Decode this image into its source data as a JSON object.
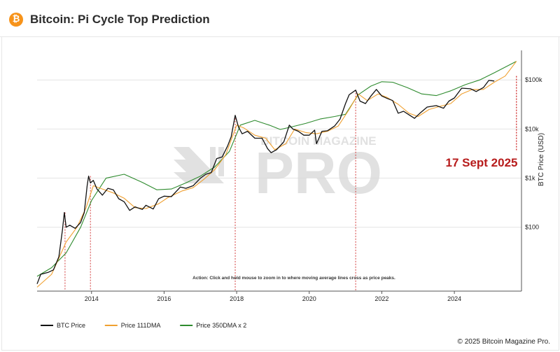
{
  "header": {
    "title": "Bitcoin: Pi Cycle Top Prediction",
    "logo_glyph": "₿",
    "logo_color": "#f7931a"
  },
  "footer": {
    "copyright": "© 2025 Bitcoin Magazine Pro."
  },
  "chart_data": {
    "type": "line",
    "title": "",
    "xlabel": "",
    "ylabel": "BTC Price (USD)",
    "y_scale": "log",
    "xlim": [
      2012.5,
      2025.85
    ],
    "ylim": [
      5,
      400000
    ],
    "x_ticks": [
      {
        "value": 2014,
        "label": "2014"
      },
      {
        "value": 2016,
        "label": "2016"
      },
      {
        "value": 2018,
        "label": "2018"
      },
      {
        "value": 2020,
        "label": "2020"
      },
      {
        "value": 2022,
        "label": "2022"
      },
      {
        "value": 2024,
        "label": "2024"
      }
    ],
    "y_ticks": [
      {
        "value": 100,
        "label": "$100"
      },
      {
        "value": 1000,
        "label": "$1k"
      },
      {
        "value": 10000,
        "label": "$10k"
      },
      {
        "value": 100000,
        "label": "$100k"
      }
    ],
    "grid": "horizontal",
    "legend_position": "bottom-left",
    "series": [
      {
        "name": "BTC Price",
        "color": "#111111",
        "points": [
          [
            2012.5,
            7
          ],
          [
            2012.6,
            11
          ],
          [
            2012.8,
            12
          ],
          [
            2012.95,
            13.5
          ],
          [
            2013.1,
            25
          ],
          [
            2013.2,
            90
          ],
          [
            2013.25,
            200
          ],
          [
            2013.3,
            100
          ],
          [
            2013.4,
            110
          ],
          [
            2013.55,
            95
          ],
          [
            2013.7,
            125
          ],
          [
            2013.8,
            200
          ],
          [
            2013.88,
            700
          ],
          [
            2013.92,
            1100
          ],
          [
            2013.97,
            800
          ],
          [
            2014.05,
            900
          ],
          [
            2014.15,
            600
          ],
          [
            2014.3,
            450
          ],
          [
            2014.45,
            620
          ],
          [
            2014.6,
            580
          ],
          [
            2014.75,
            380
          ],
          [
            2014.9,
            330
          ],
          [
            2015.05,
            220
          ],
          [
            2015.2,
            260
          ],
          [
            2015.4,
            230
          ],
          [
            2015.5,
            280
          ],
          [
            2015.7,
            235
          ],
          [
            2015.85,
            380
          ],
          [
            2016.0,
            430
          ],
          [
            2016.2,
            420
          ],
          [
            2016.45,
            660
          ],
          [
            2016.6,
            620
          ],
          [
            2016.8,
            700
          ],
          [
            2017.0,
            1000
          ],
          [
            2017.15,
            1200
          ],
          [
            2017.3,
            1300
          ],
          [
            2017.45,
            2500
          ],
          [
            2017.6,
            2700
          ],
          [
            2017.75,
            4500
          ],
          [
            2017.85,
            7000
          ],
          [
            2017.96,
            19000
          ],
          [
            2018.05,
            11000
          ],
          [
            2018.15,
            8000
          ],
          [
            2018.3,
            9000
          ],
          [
            2018.5,
            6500
          ],
          [
            2018.7,
            6500
          ],
          [
            2018.85,
            4000
          ],
          [
            2018.95,
            3300
          ],
          [
            2019.1,
            3800
          ],
          [
            2019.3,
            5500
          ],
          [
            2019.45,
            12000
          ],
          [
            2019.55,
            10000
          ],
          [
            2019.7,
            9000
          ],
          [
            2019.85,
            7500
          ],
          [
            2020.0,
            7500
          ],
          [
            2020.15,
            9500
          ],
          [
            2020.2,
            5000
          ],
          [
            2020.35,
            9000
          ],
          [
            2020.5,
            9200
          ],
          [
            2020.7,
            11500
          ],
          [
            2020.85,
            16000
          ],
          [
            2021.0,
            33000
          ],
          [
            2021.1,
            50000
          ],
          [
            2021.28,
            62000
          ],
          [
            2021.4,
            37000
          ],
          [
            2021.55,
            33000
          ],
          [
            2021.7,
            47000
          ],
          [
            2021.85,
            64000
          ],
          [
            2022.0,
            47000
          ],
          [
            2022.15,
            42000
          ],
          [
            2022.3,
            38000
          ],
          [
            2022.45,
            21000
          ],
          [
            2022.6,
            23000
          ],
          [
            2022.75,
            19500
          ],
          [
            2022.9,
            16500
          ],
          [
            2023.05,
            21000
          ],
          [
            2023.25,
            28000
          ],
          [
            2023.5,
            30000
          ],
          [
            2023.7,
            26500
          ],
          [
            2023.85,
            37000
          ],
          [
            2024.0,
            43000
          ],
          [
            2024.2,
            68000
          ],
          [
            2024.45,
            66000
          ],
          [
            2024.6,
            58000
          ],
          [
            2024.8,
            70000
          ],
          [
            2024.95,
            98000
          ],
          [
            2025.1,
            95000
          ]
        ]
      },
      {
        "name": "Price 111DMA",
        "color": "#f0a030",
        "points": [
          [
            2012.5,
            6
          ],
          [
            2012.9,
            11
          ],
          [
            2013.3,
            50
          ],
          [
            2013.6,
            100
          ],
          [
            2013.85,
            250
          ],
          [
            2014.05,
            700
          ],
          [
            2014.3,
            600
          ],
          [
            2014.6,
            500
          ],
          [
            2014.9,
            390
          ],
          [
            2015.2,
            250
          ],
          [
            2015.5,
            240
          ],
          [
            2015.85,
            300
          ],
          [
            2016.1,
            400
          ],
          [
            2016.5,
            550
          ],
          [
            2016.8,
            640
          ],
          [
            2017.1,
            950
          ],
          [
            2017.4,
            1500
          ],
          [
            2017.7,
            3000
          ],
          [
            2018.0,
            12000
          ],
          [
            2018.2,
            10500
          ],
          [
            2018.5,
            7500
          ],
          [
            2018.8,
            6500
          ],
          [
            2019.05,
            3800
          ],
          [
            2019.35,
            5000
          ],
          [
            2019.6,
            10000
          ],
          [
            2019.9,
            8500
          ],
          [
            2020.2,
            8000
          ],
          [
            2020.5,
            9000
          ],
          [
            2020.8,
            11500
          ],
          [
            2021.1,
            25000
          ],
          [
            2021.35,
            52000
          ],
          [
            2021.6,
            38000
          ],
          [
            2021.9,
            52000
          ],
          [
            2022.15,
            44000
          ],
          [
            2022.45,
            32000
          ],
          [
            2022.75,
            21000
          ],
          [
            2023.0,
            18000
          ],
          [
            2023.3,
            25000
          ],
          [
            2023.6,
            29000
          ],
          [
            2023.9,
            33000
          ],
          [
            2024.2,
            52000
          ],
          [
            2024.5,
            64000
          ],
          [
            2024.8,
            64000
          ],
          [
            2025.1,
            90000
          ],
          [
            2025.4,
            120000
          ],
          [
            2025.71,
            240000
          ]
        ]
      },
      {
        "name": "Price 350DMA x 2",
        "color": "#2e8b2e",
        "points": [
          [
            2012.5,
            10
          ],
          [
            2012.9,
            15
          ],
          [
            2013.3,
            30
          ],
          [
            2013.7,
            100
          ],
          [
            2014.0,
            350
          ],
          [
            2014.4,
            1000
          ],
          [
            2014.9,
            1200
          ],
          [
            2015.4,
            820
          ],
          [
            2015.8,
            580
          ],
          [
            2016.2,
            600
          ],
          [
            2016.6,
            800
          ],
          [
            2017.0,
            1100
          ],
          [
            2017.4,
            1700
          ],
          [
            2017.8,
            3500
          ],
          [
            2018.1,
            12000
          ],
          [
            2018.5,
            15000
          ],
          [
            2018.9,
            12000
          ],
          [
            2019.2,
            9800
          ],
          [
            2019.5,
            11000
          ],
          [
            2019.9,
            13000
          ],
          [
            2020.3,
            16000
          ],
          [
            2020.7,
            18000
          ],
          [
            2021.0,
            20000
          ],
          [
            2021.35,
            50000
          ],
          [
            2021.7,
            75000
          ],
          [
            2022.0,
            92000
          ],
          [
            2022.3,
            90000
          ],
          [
            2022.7,
            70000
          ],
          [
            2023.1,
            52000
          ],
          [
            2023.5,
            48000
          ],
          [
            2023.9,
            60000
          ],
          [
            2024.3,
            80000
          ],
          [
            2024.7,
            100000
          ],
          [
            2025.1,
            140000
          ],
          [
            2025.71,
            240000
          ]
        ]
      }
    ],
    "crossovers": [
      2013.27,
      2013.97,
      2017.96,
      2021.28,
      2025.71
    ],
    "prediction_label": "17 Sept 2025",
    "prediction_color": "#b71c1c",
    "note": "Action: Click and hold mouse to zoom in to where moving average lines cross as price peaks.",
    "watermark": "BITCOIN MAGAZINE PRO"
  }
}
